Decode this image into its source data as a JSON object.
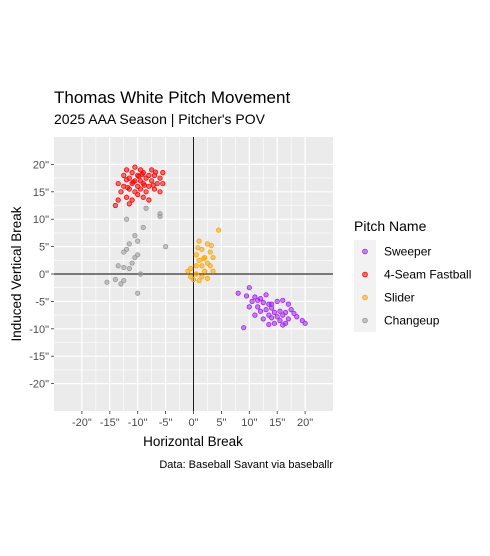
{
  "chart_data": {
    "type": "scatter",
    "title": "Thomas White Pitch Movement",
    "subtitle": "2025 AAA Season | Pitcher's POV",
    "xlabel": "Horizontal Break",
    "ylabel": "Induced Vertical Break",
    "caption": "Data: Baseball Savant via baseballr",
    "xlim": [
      -25,
      25
    ],
    "ylim": [
      -25,
      25
    ],
    "x_ticks": [
      -20,
      -15,
      -10,
      -5,
      0,
      5,
      10,
      15,
      20
    ],
    "x_tick_labels": [
      "-20\"",
      "-15\"",
      "-10\"",
      "-5\"",
      "0\"",
      "5\"",
      "10\"",
      "15\"",
      "20\""
    ],
    "y_ticks": [
      -20,
      -15,
      -10,
      -5,
      0,
      5,
      10,
      15,
      20
    ],
    "y_tick_labels": [
      "-20\"",
      "-15\"",
      "-10\"",
      "-5\"",
      "0\"",
      "5\"",
      "10\"",
      "15\"",
      "20\""
    ],
    "grid": true,
    "reference_lines": {
      "x": 0,
      "y": 0
    },
    "legend": {
      "title": "Pitch Name",
      "position": "right"
    },
    "series": [
      {
        "name": "Sweeper",
        "color": "#A020F0",
        "points": [
          [
            8,
            -3.5
          ],
          [
            9.5,
            -4
          ],
          [
            10,
            -2.5
          ],
          [
            10.5,
            -5
          ],
          [
            11,
            -4.2
          ],
          [
            11.5,
            -6
          ],
          [
            12,
            -4.5
          ],
          [
            12,
            -6.8
          ],
          [
            12.5,
            -5.2
          ],
          [
            13,
            -3.8
          ],
          [
            13,
            -6.5
          ],
          [
            13.5,
            -7.5
          ],
          [
            13.5,
            -5.5
          ],
          [
            14,
            -8
          ],
          [
            14,
            -6.2
          ],
          [
            14.5,
            -7
          ],
          [
            14.5,
            -9
          ],
          [
            15,
            -7.8
          ],
          [
            15,
            -5
          ],
          [
            15.5,
            -8.5
          ],
          [
            15.5,
            -6.8
          ],
          [
            16,
            -7.5
          ],
          [
            16,
            -4.8
          ],
          [
            16.5,
            -9
          ],
          [
            16.5,
            -7
          ],
          [
            17,
            -5.5
          ],
          [
            17,
            -8.2
          ],
          [
            17.5,
            -6.5
          ],
          [
            18,
            -7.2
          ],
          [
            18.5,
            -7.8
          ],
          [
            19.5,
            -8.5
          ],
          [
            20,
            -9
          ],
          [
            14,
            -5.5
          ],
          [
            11.5,
            -4.8
          ],
          [
            10,
            -6
          ],
          [
            9,
            -9.8
          ],
          [
            12.5,
            -8.2
          ],
          [
            16,
            -9.3
          ],
          [
            13.5,
            -9.2
          ],
          [
            11,
            -7.5
          ]
        ]
      },
      {
        "name": "4-Seam Fastball",
        "color": "#FF0000",
        "points": [
          [
            -13.5,
            16.5
          ],
          [
            -13,
            15
          ],
          [
            -12.5,
            18
          ],
          [
            -12.5,
            16
          ],
          [
            -12,
            19
          ],
          [
            -12,
            14
          ],
          [
            -11.5,
            17.5
          ],
          [
            -11.5,
            15.5
          ],
          [
            -11,
            18.5
          ],
          [
            -11,
            16.5
          ],
          [
            -11,
            13.5
          ],
          [
            -10.5,
            17
          ],
          [
            -10.5,
            15
          ],
          [
            -10.5,
            19.5
          ],
          [
            -10,
            16
          ],
          [
            -10,
            18
          ],
          [
            -10,
            14.5
          ],
          [
            -9.5,
            17
          ],
          [
            -9.5,
            15.5
          ],
          [
            -9.5,
            19
          ],
          [
            -9,
            16.5
          ],
          [
            -9,
            18.5
          ],
          [
            -9,
            14
          ],
          [
            -8.5,
            17.5
          ],
          [
            -8.5,
            15
          ],
          [
            -8,
            18
          ],
          [
            -8,
            16
          ],
          [
            -7.5,
            17
          ],
          [
            -7.5,
            19
          ],
          [
            -7,
            15.5
          ],
          [
            -7,
            18
          ],
          [
            -6.5,
            16.5
          ],
          [
            -6,
            17.5
          ],
          [
            -6,
            15
          ],
          [
            -5.5,
            18.5
          ],
          [
            -5.5,
            16.5
          ],
          [
            -13.5,
            13.5
          ],
          [
            -14,
            12.5
          ],
          [
            -11.5,
            12.8
          ],
          [
            -8,
            13.5
          ],
          [
            -12,
            17.2
          ],
          [
            -9.8,
            17.8
          ],
          [
            -10.8,
            16.8
          ],
          [
            -8.8,
            16.2
          ],
          [
            -7.2,
            16.2
          ],
          [
            -6.8,
            18.6
          ],
          [
            -11.8,
            15.8
          ],
          [
            -9.2,
            18.2
          ]
        ]
      },
      {
        "name": "Slider",
        "color": "#FFA500",
        "points": [
          [
            1,
            6
          ],
          [
            2.5,
            5.5
          ],
          [
            4.5,
            8
          ],
          [
            1.5,
            4.5
          ],
          [
            3,
            4
          ],
          [
            0.5,
            3.5
          ],
          [
            2,
            3
          ],
          [
            3.5,
            3
          ],
          [
            1,
            2.5
          ],
          [
            2.5,
            2
          ],
          [
            0.5,
            1.5
          ],
          [
            1.5,
            1.5
          ],
          [
            3,
            1.5
          ],
          [
            -0.5,
            1
          ],
          [
            2,
            0.5
          ],
          [
            0.5,
            0
          ],
          [
            1.5,
            -0.5
          ],
          [
            -0.5,
            -0.5
          ],
          [
            0,
            -1
          ],
          [
            1,
            -1.2
          ],
          [
            2.5,
            -0.8
          ],
          [
            3.5,
            0.5
          ],
          [
            -1,
            0.5
          ],
          [
            1.8,
            2.8
          ],
          [
            0.8,
            4.8
          ],
          [
            3.2,
            5.2
          ]
        ]
      },
      {
        "name": "Changeup",
        "color": "#999999",
        "points": [
          [
            -8.5,
            12
          ],
          [
            -6,
            11
          ],
          [
            -6,
            10.5
          ],
          [
            -12,
            10
          ],
          [
            -9,
            8.5
          ],
          [
            -10.5,
            7
          ],
          [
            -10,
            6
          ],
          [
            -11.5,
            5.5
          ],
          [
            -12,
            4.5
          ],
          [
            -12.5,
            4
          ],
          [
            -10,
            3.5
          ],
          [
            -10.5,
            3
          ],
          [
            -5,
            5
          ],
          [
            -11,
            2
          ],
          [
            -13.5,
            1.5
          ],
          [
            -12.5,
            1.2
          ],
          [
            -11.5,
            1
          ],
          [
            -9.5,
            0
          ],
          [
            -14,
            -1
          ],
          [
            -12.5,
            -1.2
          ],
          [
            -15.5,
            -1.5
          ],
          [
            -13,
            -1.8
          ],
          [
            -10,
            -3.5
          ]
        ]
      }
    ]
  }
}
